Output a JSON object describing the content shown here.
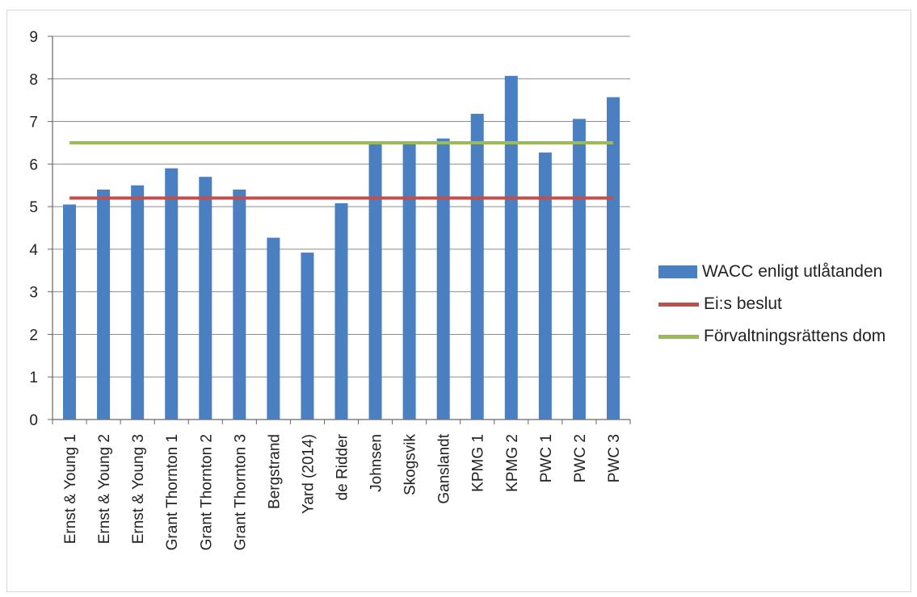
{
  "chart_data": {
    "type": "bar",
    "categories": [
      "Ernst & Young 1",
      "Ernst & Young 2",
      "Ernst & Young 3",
      "Grant Thornton 1",
      "Grant Thornton 2",
      "Grant Thornton 3",
      "Bergstrand",
      "Yard (2014)",
      "de Ridder",
      "Johnsen",
      "Skogsvik",
      "Ganslandt",
      "KPMG 1",
      "KPMG 2",
      "PWC 1",
      "PWC 2",
      "PWC 3"
    ],
    "series": [
      {
        "name": "WACC enligt utlåtanden",
        "type": "bar",
        "color": "#4a7fc1",
        "values": [
          5.05,
          5.4,
          5.5,
          5.9,
          5.7,
          5.4,
          4.27,
          3.92,
          5.08,
          6.5,
          6.5,
          6.6,
          7.18,
          8.07,
          6.27,
          7.06,
          7.57
        ]
      },
      {
        "name": "Ei:s beslut",
        "type": "line",
        "color": "#c0504d",
        "values": [
          5.2,
          5.2,
          5.2,
          5.2,
          5.2,
          5.2,
          5.2,
          5.2,
          5.2,
          5.2,
          5.2,
          5.2,
          5.2,
          5.2,
          5.2,
          5.2,
          5.2
        ]
      },
      {
        "name": "Förvaltningsrättens dom",
        "type": "line",
        "color": "#9bbb59",
        "values": [
          6.5,
          6.5,
          6.5,
          6.5,
          6.5,
          6.5,
          6.5,
          6.5,
          6.5,
          6.5,
          6.5,
          6.5,
          6.5,
          6.5,
          6.5,
          6.5,
          6.5
        ]
      }
    ],
    "yticks": [
      "0",
      "1",
      "2",
      "3",
      "4",
      "5",
      "6",
      "7",
      "8",
      "9"
    ],
    "ylim": [
      0,
      9
    ],
    "grid": true,
    "legend_position": "right"
  }
}
